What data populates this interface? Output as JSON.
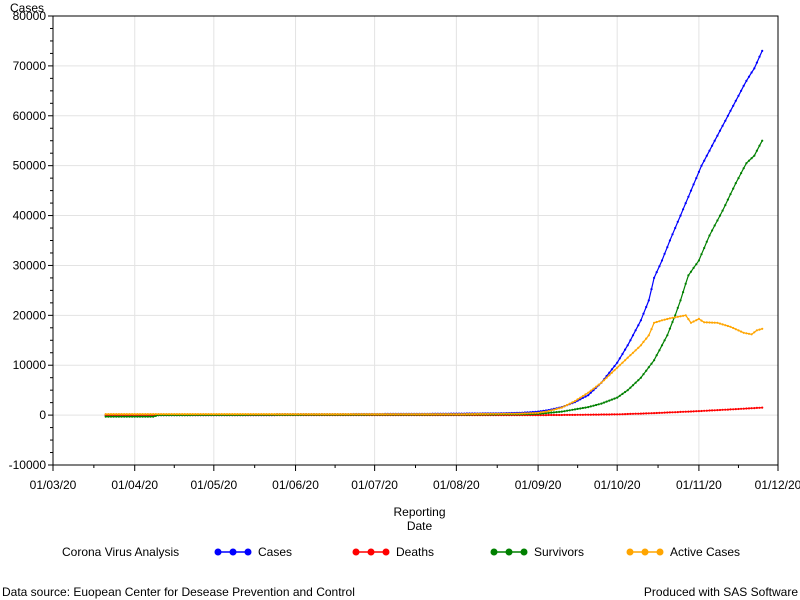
{
  "chart_data": {
    "type": "line",
    "ylabel": "Cases",
    "xlabel_lines": [
      "Reporting",
      "Date"
    ],
    "ylim": [
      -10000,
      80000
    ],
    "yticks": [
      -10000,
      0,
      10000,
      20000,
      30000,
      40000,
      50000,
      60000,
      70000,
      80000
    ],
    "xlim": [
      "2020-03-01",
      "2020-12-01"
    ],
    "xticks": [
      {
        "date": "2020-03-01",
        "label": "01/03/20"
      },
      {
        "date": "2020-04-01",
        "label": "01/04/20"
      },
      {
        "date": "2020-05-01",
        "label": "01/05/20"
      },
      {
        "date": "2020-06-01",
        "label": "01/06/20"
      },
      {
        "date": "2020-07-01",
        "label": "01/07/20"
      },
      {
        "date": "2020-08-01",
        "label": "01/08/20"
      },
      {
        "date": "2020-09-01",
        "label": "01/09/20"
      },
      {
        "date": "2020-10-01",
        "label": "01/10/20"
      },
      {
        "date": "2020-11-01",
        "label": "01/11/20"
      },
      {
        "date": "2020-12-01",
        "label": "01/12/20"
      }
    ],
    "grid": true,
    "legend": {
      "title": "Corona Virus Analysis",
      "placement": "bottom"
    },
    "series": [
      {
        "name": "Cases",
        "color": "#0000ff",
        "points": [
          [
            "2020-03-21",
            0
          ],
          [
            "2020-05-24",
            0
          ],
          [
            "2020-05-25",
            200
          ],
          [
            "2020-06-15",
            200
          ],
          [
            "2020-07-15",
            250
          ],
          [
            "2020-08-01",
            300
          ],
          [
            "2020-08-15",
            350
          ],
          [
            "2020-08-25",
            450
          ],
          [
            "2020-09-01",
            700
          ],
          [
            "2020-09-05",
            1000
          ],
          [
            "2020-09-10",
            1600
          ],
          [
            "2020-09-15",
            2600
          ],
          [
            "2020-09-20",
            4000
          ],
          [
            "2020-09-25",
            6500
          ],
          [
            "2020-10-01",
            10500
          ],
          [
            "2020-10-05",
            14000
          ],
          [
            "2020-10-10",
            19000
          ],
          [
            "2020-10-13",
            23000
          ],
          [
            "2020-10-15",
            27500
          ],
          [
            "2020-10-18",
            31000
          ],
          [
            "2020-10-21",
            35000
          ],
          [
            "2020-10-25",
            40000
          ],
          [
            "2020-10-29",
            45000
          ],
          [
            "2020-11-02",
            50000
          ],
          [
            "2020-11-07",
            55000
          ],
          [
            "2020-11-11",
            59000
          ],
          [
            "2020-11-15",
            63000
          ],
          [
            "2020-11-19",
            67000
          ],
          [
            "2020-11-22",
            69500
          ],
          [
            "2020-11-25",
            73000
          ]
        ]
      },
      {
        "name": "Deaths",
        "color": "#ff0000",
        "points": [
          [
            "2020-03-21",
            0
          ],
          [
            "2020-06-01",
            0
          ],
          [
            "2020-08-01",
            0
          ],
          [
            "2020-09-01",
            0
          ],
          [
            "2020-09-15",
            50
          ],
          [
            "2020-10-01",
            150
          ],
          [
            "2020-10-15",
            400
          ],
          [
            "2020-11-01",
            800
          ],
          [
            "2020-11-15",
            1200
          ],
          [
            "2020-11-25",
            1500
          ]
        ]
      },
      {
        "name": "Survivors",
        "color": "#008000",
        "points": [
          [
            "2020-03-21",
            -300
          ],
          [
            "2020-04-08",
            -300
          ],
          [
            "2020-04-10",
            0
          ],
          [
            "2020-06-01",
            50
          ],
          [
            "2020-08-01",
            100
          ],
          [
            "2020-08-25",
            150
          ],
          [
            "2020-09-01",
            250
          ],
          [
            "2020-09-10",
            700
          ],
          [
            "2020-09-20",
            1600
          ],
          [
            "2020-09-25",
            2300
          ],
          [
            "2020-10-01",
            3500
          ],
          [
            "2020-10-05",
            5000
          ],
          [
            "2020-10-10",
            7500
          ],
          [
            "2020-10-15",
            11000
          ],
          [
            "2020-10-20",
            16000
          ],
          [
            "2020-10-23",
            20000
          ],
          [
            "2020-10-25",
            23000
          ],
          [
            "2020-10-28",
            28000
          ],
          [
            "2020-11-01",
            31000
          ],
          [
            "2020-11-05",
            36000
          ],
          [
            "2020-11-10",
            41000
          ],
          [
            "2020-11-15",
            46500
          ],
          [
            "2020-11-19",
            50500
          ],
          [
            "2020-11-22",
            52000
          ],
          [
            "2020-11-25",
            55000
          ]
        ]
      },
      {
        "name": "Active Cases",
        "color": "#ffa500",
        "points": [
          [
            "2020-03-21",
            200
          ],
          [
            "2020-05-24",
            200
          ],
          [
            "2020-07-01",
            200
          ],
          [
            "2020-08-01",
            200
          ],
          [
            "2020-08-25",
            300
          ],
          [
            "2020-09-01",
            450
          ],
          [
            "2020-09-05",
            800
          ],
          [
            "2020-09-10",
            1500
          ],
          [
            "2020-09-15",
            2800
          ],
          [
            "2020-09-20",
            4500
          ],
          [
            "2020-09-25",
            6500
          ],
          [
            "2020-10-01",
            9500
          ],
          [
            "2020-10-05",
            11500
          ],
          [
            "2020-10-10",
            14000
          ],
          [
            "2020-10-13",
            16000
          ],
          [
            "2020-10-15",
            18500
          ],
          [
            "2020-10-18",
            19000
          ],
          [
            "2020-10-21",
            19400
          ],
          [
            "2020-10-25",
            19800
          ],
          [
            "2020-10-27",
            20000
          ],
          [
            "2020-10-29",
            18500
          ],
          [
            "2020-11-01",
            19300
          ],
          [
            "2020-11-03",
            18600
          ],
          [
            "2020-11-08",
            18500
          ],
          [
            "2020-11-13",
            17700
          ],
          [
            "2020-11-18",
            16500
          ],
          [
            "2020-11-21",
            16200
          ],
          [
            "2020-11-23",
            17000
          ],
          [
            "2020-11-25",
            17300
          ]
        ]
      }
    ]
  },
  "footer": {
    "left": "Data source: Euopean Center for Desease Prevention and Control",
    "right": "Produced with SAS Software"
  }
}
